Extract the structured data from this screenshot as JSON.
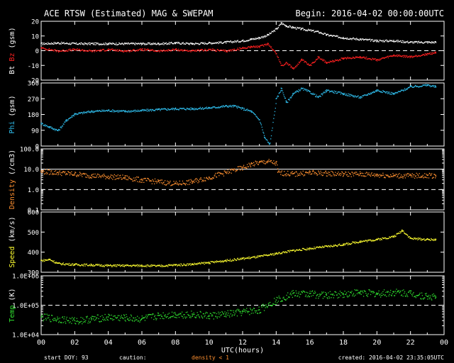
{
  "header": {
    "title": "ACE RTSW (Estimated) MAG & SWEPAM",
    "begin": "Begin: 2016-04-02 00:00:00UTC"
  },
  "footer": {
    "start_doy": "start DOY:  93",
    "caution": "caution:",
    "density_note": "density < 1",
    "created": "created: 2016-04-02 23:35:05UTC"
  },
  "colors": {
    "bt": "#ffffff",
    "bz": "#ff2020",
    "phi": "#30c0f0",
    "density": "#ff9030",
    "speed": "#ffff30",
    "temp": "#30e030",
    "frame": "#ffffff"
  },
  "chart_data": {
    "type": "scatter",
    "xlabel": "UTC(hours)",
    "xlim": [
      0,
      24
    ],
    "x_tick_labels": [
      "00",
      "02",
      "04",
      "06",
      "08",
      "10",
      "12",
      "14",
      "16",
      "18",
      "20",
      "22",
      "00"
    ],
    "panels": [
      {
        "id": "mag",
        "ylabel_parts": [
          {
            "text": "Bt",
            "color": "#ffffff"
          },
          {
            "text": " ",
            "color": "#ffffff"
          },
          {
            "text": "Bz",
            "color": "#ff2020"
          },
          {
            "text": " (gsm)",
            "color": "#ffffff"
          }
        ],
        "ylim": [
          -20,
          20
        ],
        "scale": "linear",
        "ticks": [
          20,
          10,
          0,
          -10,
          -20
        ],
        "tick_labels": [
          "20",
          "10",
          "0",
          "-10",
          "-20"
        ],
        "dashed_at": 0,
        "series": [
          {
            "name": "Bt",
            "color": "#ffffff",
            "x": [
              0,
              1,
              2,
              3,
              4,
              5,
              6,
              7,
              8,
              9,
              10,
              11,
              12,
              12.5,
              13,
              13.5,
              14,
              14.3,
              14.6,
              15,
              15.5,
              16,
              16.5,
              17,
              18,
              19,
              20,
              21,
              22,
              23,
              23.5
            ],
            "y": [
              5,
              5.5,
              5,
              5,
              5,
              5,
              5,
              5,
              5.5,
              5,
              5.5,
              6,
              7,
              8,
              9,
              11,
              15,
              19,
              17,
              16,
              15,
              14,
              13,
              11,
              9,
              8,
              7,
              7,
              6,
              6,
              6
            ]
          },
          {
            "name": "Bz",
            "color": "#ff2020",
            "x": [
              0,
              1,
              2,
              3,
              4,
              5,
              6,
              7,
              8,
              9,
              10,
              11,
              12,
              12.5,
              13,
              13.5,
              14,
              14.3,
              14.6,
              15,
              15.5,
              16,
              16.5,
              17,
              18,
              19,
              20,
              21,
              22,
              23,
              23.5
            ],
            "y": [
              2,
              0,
              1,
              0,
              1,
              0,
              1,
              0,
              1,
              0,
              1,
              0,
              2,
              3,
              3,
              5,
              -2,
              -10,
              -8,
              -12,
              -6,
              -10,
              -4,
              -8,
              -5,
              -4,
              -6,
              -3,
              -4,
              -2,
              -1
            ]
          }
        ]
      },
      {
        "id": "phi",
        "ylabel_parts": [
          {
            "text": "Phi",
            "color": "#30c0f0"
          },
          {
            "text": " (gsm)",
            "color": "#ffffff"
          }
        ],
        "ylim": [
          0,
          360
        ],
        "scale": "linear",
        "ticks": [
          360,
          270,
          180,
          90,
          0
        ],
        "tick_labels": [
          "360",
          "270",
          "180",
          "90",
          "0"
        ],
        "series": [
          {
            "name": "Phi",
            "color": "#30c0f0",
            "x": [
              0,
              0.5,
              1,
              1.5,
              2,
              3,
              4,
              5,
              6,
              7,
              8,
              9,
              10,
              11,
              11.5,
              12,
              12.5,
              13,
              13.3,
              13.6,
              14,
              14.3,
              14.6,
              15,
              15.5,
              16,
              16.5,
              17,
              18,
              19,
              20,
              21,
              22,
              23,
              23.5
            ],
            "y": [
              130,
              110,
              90,
              150,
              185,
              200,
              205,
              200,
              205,
              210,
              215,
              215,
              220,
              230,
              230,
              215,
              200,
              150,
              50,
              10,
              270,
              330,
              250,
              300,
              330,
              310,
              280,
              320,
              300,
              280,
              320,
              300,
              340,
              350,
              340
            ]
          }
        ]
      },
      {
        "id": "density",
        "ylabel_parts": [
          {
            "text": "Density",
            "color": "#ff9030"
          },
          {
            "text": " (/cm3)",
            "color": "#ffffff"
          }
        ],
        "ylim": [
          0.1,
          100
        ],
        "scale": "log",
        "ticks": [
          100,
          10,
          1,
          0.1
        ],
        "tick_labels": [
          "100.0",
          "10.0",
          "1.0",
          "0.1"
        ],
        "dashed_at": 1,
        "solid_at": 10,
        "series": [
          {
            "name": "Density",
            "color": "#ff9030",
            "x": [
              0,
              1,
              2,
              3,
              4,
              5,
              6,
              7,
              8,
              9,
              10,
              11,
              12,
              12.5,
              13,
              13.5,
              14,
              14.1,
              15,
              16,
              17,
              18,
              19,
              20,
              21,
              22,
              23,
              23.5
            ],
            "y": [
              8,
              7,
              6,
              5,
              4.5,
              4,
              3,
              2.5,
              2,
              2.5,
              4,
              7,
              12,
              18,
              22,
              25,
              20,
              7,
              6,
              7,
              6.5,
              6,
              6,
              5.5,
              5,
              5,
              5,
              5
            ]
          }
        ]
      },
      {
        "id": "speed",
        "ylabel_parts": [
          {
            "text": "Speed",
            "color": "#ffff30"
          },
          {
            "text": " (km/s)",
            "color": "#ffffff"
          }
        ],
        "ylim": [
          300,
          600
        ],
        "scale": "linear",
        "ticks": [
          600,
          500,
          400,
          300
        ],
        "tick_labels": [
          "600",
          "500",
          "400",
          "300"
        ],
        "series": [
          {
            "name": "Speed",
            "color": "#ffff30",
            "x": [
              0,
              0.5,
              1,
              2,
              3,
              4,
              5,
              6,
              7,
              8,
              9,
              10,
              11,
              12,
              13,
              14,
              15,
              16,
              17,
              18,
              19,
              20,
              21,
              21.5,
              22,
              23,
              23.5
            ],
            "y": [
              360,
              365,
              345,
              340,
              338,
              335,
              335,
              335,
              333,
              338,
              342,
              350,
              360,
              370,
              380,
              395,
              410,
              420,
              430,
              440,
              455,
              465,
              480,
              510,
              470,
              465,
              465
            ]
          }
        ]
      },
      {
        "id": "temp",
        "ylabel_parts": [
          {
            "text": "Temp",
            "color": "#30e030"
          },
          {
            "text": " (K)",
            "color": "#ffffff"
          }
        ],
        "ylim": [
          10000,
          1000000
        ],
        "scale": "log",
        "ticks": [
          1000000,
          100000,
          10000
        ],
        "tick_labels": [
          "1.0E+06",
          "1.0E+05",
          "1.0E+04"
        ],
        "dashed_at": 100000,
        "series": [
          {
            "name": "Temp",
            "color": "#30e030",
            "x": [
              0,
              1,
              2,
              3,
              4,
              5,
              6,
              7,
              8,
              9,
              10,
              11,
              12,
              13,
              14,
              15,
              16,
              17,
              18,
              19,
              20,
              21,
              22,
              23,
              23.5
            ],
            "y": [
              40000,
              35000,
              30000,
              35000,
              40000,
              38000,
              35000,
              45000,
              50000,
              50000,
              45000,
              50000,
              60000,
              70000,
              150000,
              250000,
              250000,
              220000,
              250000,
              280000,
              250000,
              280000,
              260000,
              200000,
              200000
            ]
          }
        ]
      }
    ]
  }
}
